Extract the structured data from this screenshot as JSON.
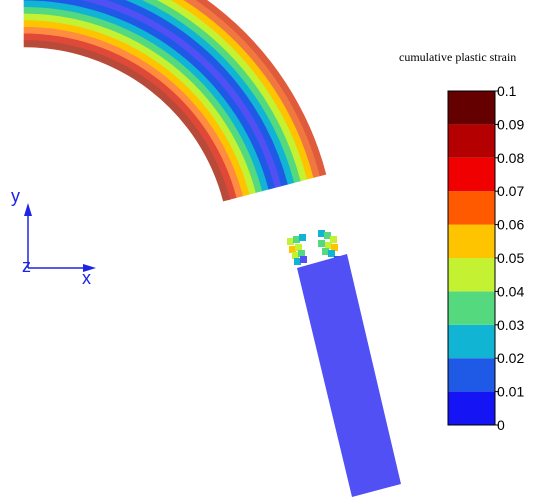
{
  "legend": {
    "title": "cumulative plastic strain",
    "bins": [
      {
        "from": 0.0,
        "to": 0.01,
        "color": "#1414f5"
      },
      {
        "from": 0.01,
        "to": 0.02,
        "color": "#1e5ae6"
      },
      {
        "from": 0.02,
        "to": 0.03,
        "color": "#11b4d2"
      },
      {
        "from": 0.03,
        "to": 0.04,
        "color": "#55d97e"
      },
      {
        "from": 0.04,
        "to": 0.05,
        "color": "#c4f233"
      },
      {
        "from": 0.05,
        "to": 0.06,
        "color": "#ffc400"
      },
      {
        "from": 0.06,
        "to": 0.07,
        "color": "#ff5a00"
      },
      {
        "from": 0.07,
        "to": 0.08,
        "color": "#f00000"
      },
      {
        "from": 0.08,
        "to": 0.09,
        "color": "#b40000"
      },
      {
        "from": 0.09,
        "to": 0.1,
        "color": "#640000"
      }
    ],
    "tick_labels": [
      "0",
      "0.01",
      "0.02",
      "0.03",
      "0.04",
      "0.05",
      "0.06",
      "0.07",
      "0.08",
      "0.09",
      "0.1"
    ]
  },
  "axes_triad": {
    "x": "x",
    "y": "y",
    "z": "z",
    "color": "#1d24e6"
  },
  "band_colors": [
    "#e05a3c",
    "#f07840",
    "#ffc400",
    "#c4f233",
    "#55d97e",
    "#11b4d2",
    "#1e5ae6",
    "#5050f5",
    "#1e5ae6",
    "#11b4d2",
    "#55d97e",
    "#c4f233",
    "#ffc400",
    "#ff8c40",
    "#e04838",
    "#b84a3a"
  ],
  "straight_section_color": "#5050f5"
}
